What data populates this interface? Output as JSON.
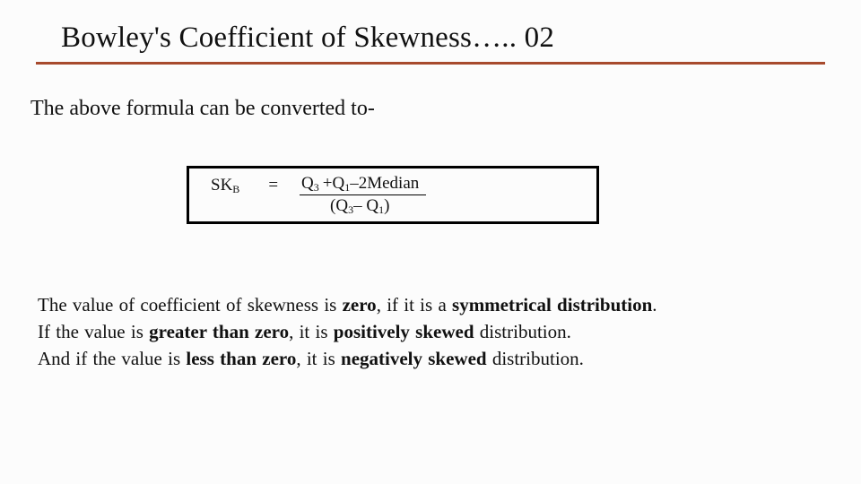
{
  "title": "Bowley's Coefficient of Skewness….. 02",
  "intro": "The above formula can be converted to-",
  "formula": {
    "lhs_symbol": "SK",
    "lhs_sub": "B",
    "equals": "=",
    "num_Q": "Q",
    "num_sub3": "3",
    "num_plus": " + ",
    "num_sub1": "1",
    "num_minus": " – ",
    "num_two": "2",
    "num_median": "Median",
    "den_open": "(Q",
    "den_sub3": "3",
    "den_mid": " – Q",
    "den_sub1": "1",
    "den_close": ")"
  },
  "para": {
    "l1a": "The value of coefficient of  skewness is ",
    "l1b": "zero",
    "l1c": ", if it is  a ",
    "l1d": "symmetrical distribution",
    "l1e": ".",
    "l2a": "If the value is ",
    "l2b": "greater than zero",
    "l2c": ", it is ",
    "l2d": "positively skewed ",
    "l2e": "distribution.",
    "l3a": "And if the value  is ",
    "l3b": "less than zero",
    "l3c": ", it is ",
    "l3d": "negatively skewed ",
    "l3e": "distribution."
  },
  "colors": {
    "rule": "#a74a2d",
    "bg": "#fcfcfc",
    "text": "#111111"
  }
}
